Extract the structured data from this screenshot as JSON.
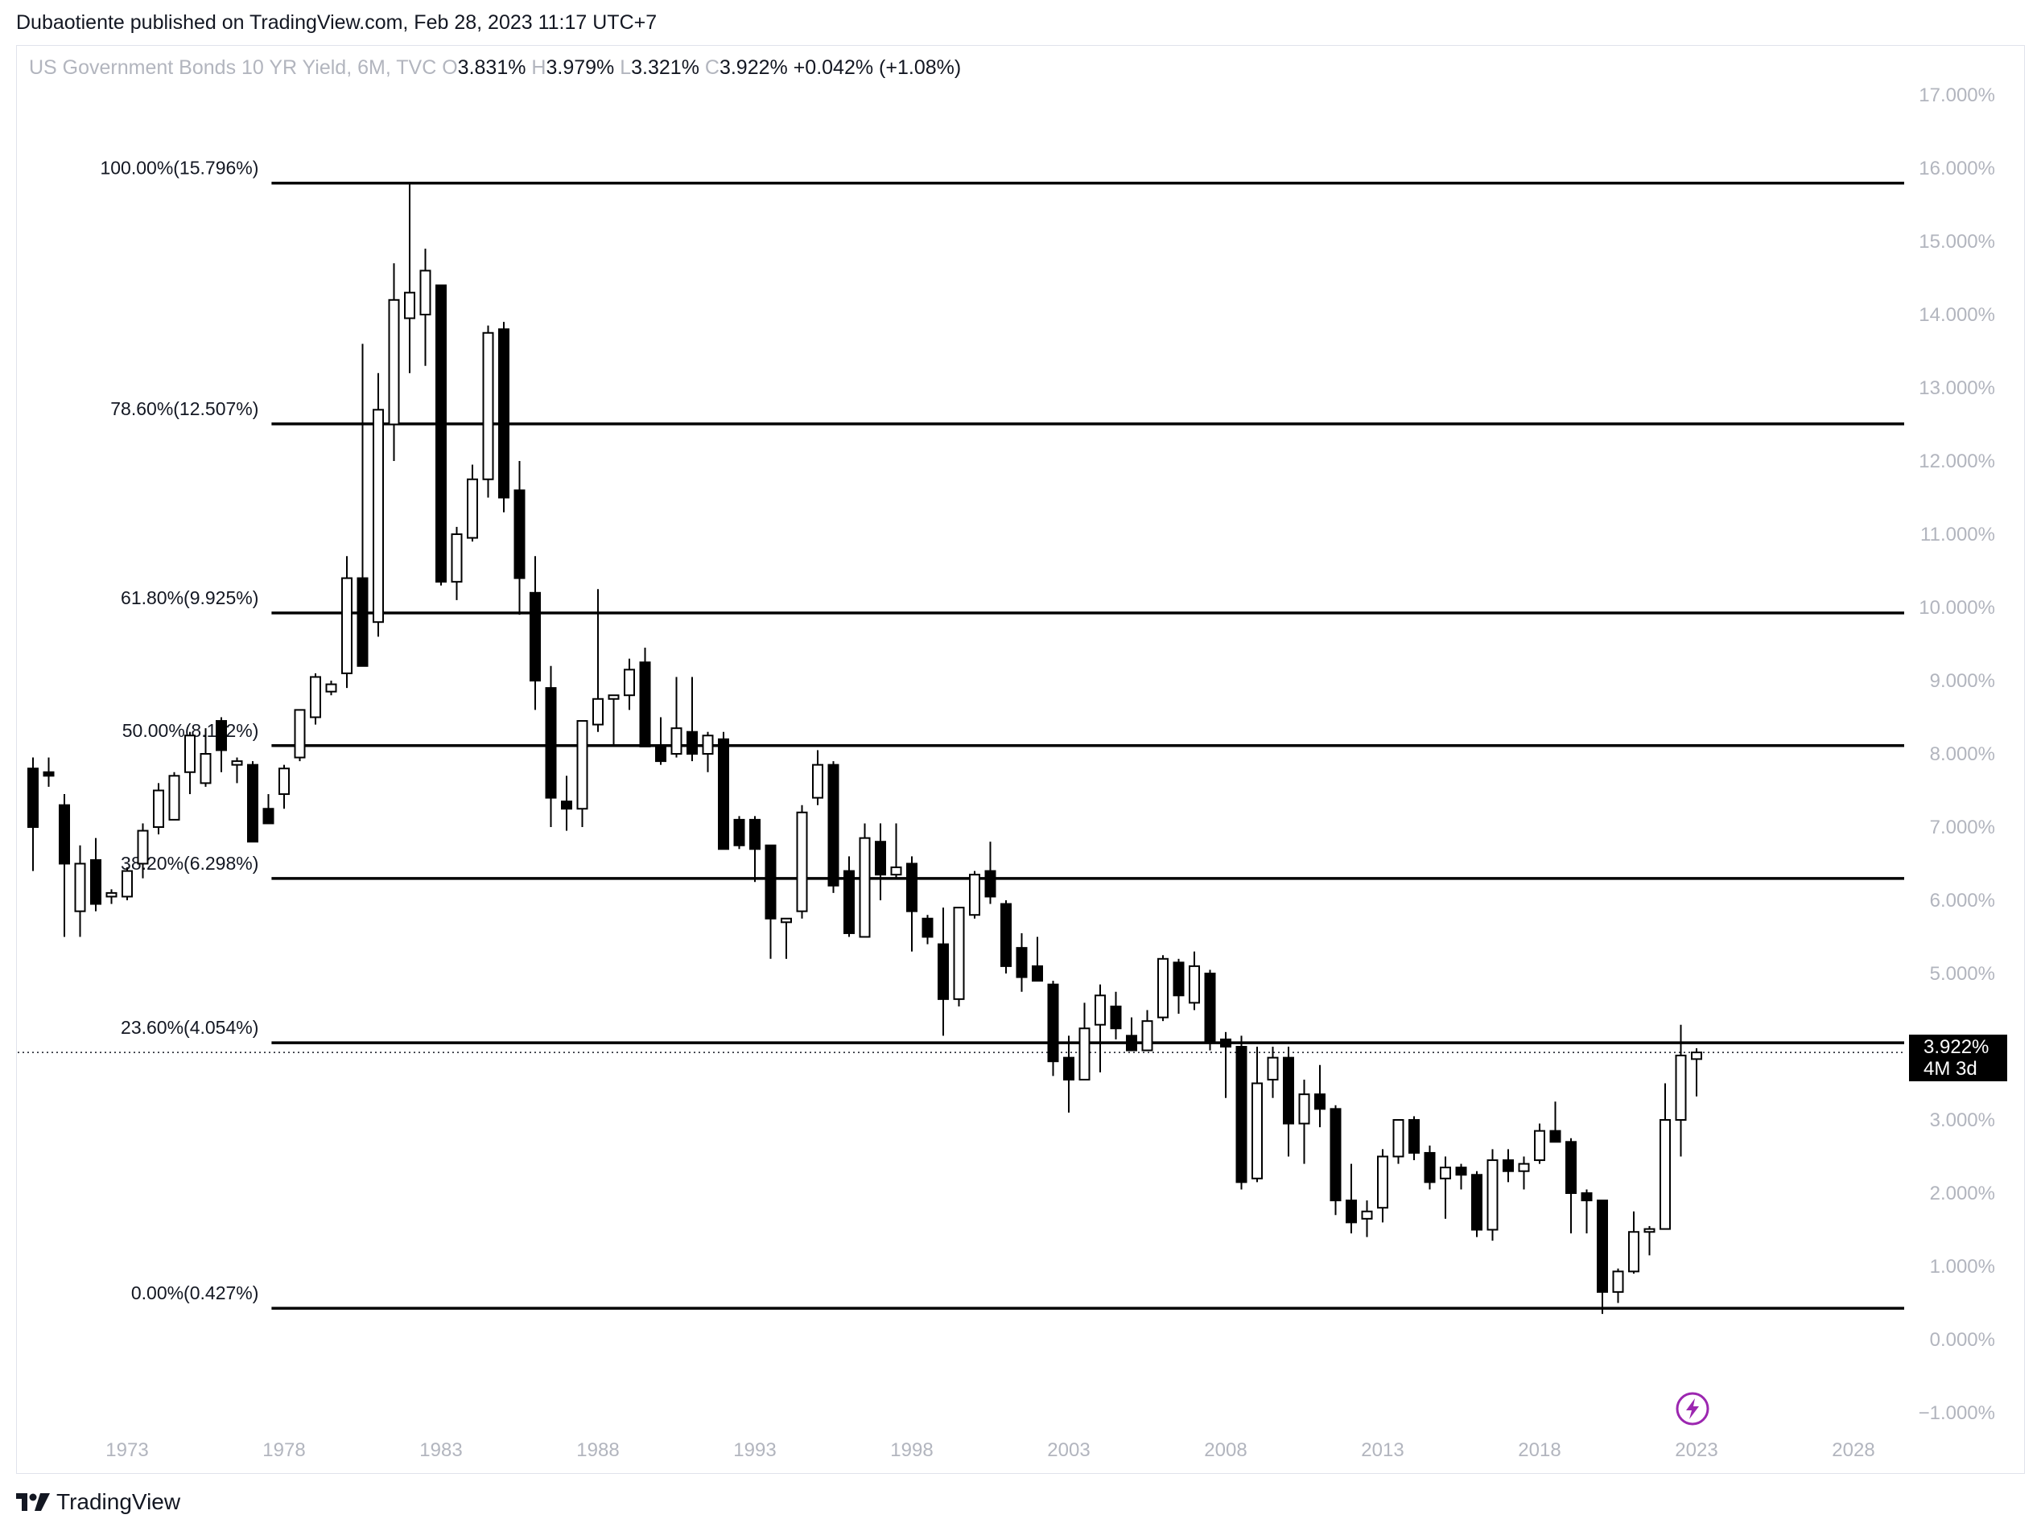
{
  "header": {
    "published_by": "Dubaotiente published on TradingView.com, Feb 28, 2023 11:17 UTC+7"
  },
  "legend": {
    "symbol": "US Government Bonds 10 YR Yield, 6M, TVC",
    "open_label": "O",
    "open": "3.831%",
    "high_label": "H",
    "high": "3.979%",
    "low_label": "L",
    "low": "3.321%",
    "close_label": "C",
    "close": "3.922%",
    "change": "+0.042% (+1.08%)"
  },
  "price_tag": {
    "value": "3.922%",
    "countdown": "4M 3d"
  },
  "branding": {
    "name": "TradingView"
  },
  "icons": {
    "logo": "tradingview-logo-icon",
    "flash": "lightning-icon"
  },
  "colors": {
    "up_body": "#ffffff",
    "down_body": "#000000",
    "wick": "#000000",
    "axis_text": "#b2b5be",
    "fib_line": "#000000",
    "flash": "#9c27b0"
  },
  "chart_data": {
    "type": "candlestick",
    "interval": "6M",
    "y_unit": "%",
    "ylim": [
      -1.2,
      17.8
    ],
    "xlim": [
      1969.9,
      2030.0
    ],
    "y_ticks": [
      "17.000%",
      "16.000%",
      "15.000%",
      "14.000%",
      "13.000%",
      "12.000%",
      "11.000%",
      "10.000%",
      "9.000%",
      "8.000%",
      "7.000%",
      "6.000%",
      "5.000%",
      "4.000%",
      "3.000%",
      "2.000%",
      "1.000%",
      "0.000%",
      "−1.000%"
    ],
    "y_tick_values": [
      17,
      16,
      15,
      14,
      13,
      12,
      11,
      10,
      9,
      8,
      7,
      6,
      5,
      4,
      3,
      2,
      1,
      0,
      -1
    ],
    "x_ticks": [
      "1973",
      "1978",
      "1983",
      "1988",
      "1993",
      "1998",
      "2003",
      "2008",
      "2013",
      "2018",
      "2023",
      "2028"
    ],
    "x_tick_values": [
      1973,
      1978,
      1983,
      1988,
      1993,
      1998,
      2003,
      2008,
      2013,
      2018,
      2023,
      2028
    ],
    "fib_levels": [
      {
        "label": "100.00%(15.796%)",
        "value": 15.796
      },
      {
        "label": "78.60%(12.507%)",
        "value": 12.507
      },
      {
        "label": "61.80%(9.925%)",
        "value": 9.925
      },
      {
        "label": "50.00%(8.112%)",
        "value": 8.112
      },
      {
        "label": "38.20%(6.298%)",
        "value": 6.298
      },
      {
        "label": "23.60%(4.054%)",
        "value": 4.054
      },
      {
        "label": "0.00%(0.427%)",
        "value": 0.427
      }
    ],
    "fib_start_x": 1977.6,
    "current_price": 3.922,
    "candles": [
      {
        "t": 1970.0,
        "o": 7.8,
        "h": 7.95,
        "l": 6.4,
        "c": 7.0
      },
      {
        "t": 1970.5,
        "o": 7.75,
        "h": 7.95,
        "l": 7.55,
        "c": 7.7
      },
      {
        "t": 1971.0,
        "o": 7.3,
        "h": 7.45,
        "l": 5.5,
        "c": 6.5
      },
      {
        "t": 1971.5,
        "o": 5.85,
        "h": 6.75,
        "l": 5.5,
        "c": 6.5
      },
      {
        "t": 1972.0,
        "o": 6.55,
        "h": 6.85,
        "l": 5.85,
        "c": 5.95
      },
      {
        "t": 1972.5,
        "o": 6.05,
        "h": 6.15,
        "l": 5.95,
        "c": 6.1
      },
      {
        "t": 1973.0,
        "o": 6.05,
        "h": 6.45,
        "l": 6.0,
        "c": 6.4
      },
      {
        "t": 1973.5,
        "o": 6.5,
        "h": 7.05,
        "l": 6.3,
        "c": 6.95
      },
      {
        "t": 1974.0,
        "o": 7.0,
        "h": 7.6,
        "l": 6.9,
        "c": 7.5
      },
      {
        "t": 1974.5,
        "o": 7.1,
        "h": 7.75,
        "l": 7.1,
        "c": 7.7
      },
      {
        "t": 1975.0,
        "o": 7.75,
        "h": 8.3,
        "l": 7.45,
        "c": 8.25
      },
      {
        "t": 1975.5,
        "o": 7.6,
        "h": 8.35,
        "l": 7.55,
        "c": 8.0
      },
      {
        "t": 1976.0,
        "o": 8.45,
        "h": 8.5,
        "l": 7.75,
        "c": 8.05
      },
      {
        "t": 1976.5,
        "o": 7.85,
        "h": 7.95,
        "l": 7.6,
        "c": 7.9
      },
      {
        "t": 1977.0,
        "o": 7.85,
        "h": 7.9,
        "l": 6.85,
        "c": 6.8
      },
      {
        "t": 1977.5,
        "o": 7.25,
        "h": 7.45,
        "l": 7.05,
        "c": 7.05
      },
      {
        "t": 1978.0,
        "o": 7.45,
        "h": 7.85,
        "l": 7.25,
        "c": 7.8
      },
      {
        "t": 1978.5,
        "o": 7.95,
        "h": 8.6,
        "l": 7.9,
        "c": 8.6
      },
      {
        "t": 1979.0,
        "o": 8.5,
        "h": 9.1,
        "l": 8.4,
        "c": 9.05
      },
      {
        "t": 1979.5,
        "o": 8.85,
        "h": 9.0,
        "l": 8.8,
        "c": 8.95
      },
      {
        "t": 1980.0,
        "o": 9.1,
        "h": 10.7,
        "l": 8.9,
        "c": 10.4
      },
      {
        "t": 1980.5,
        "o": 10.4,
        "h": 13.6,
        "l": 9.25,
        "c": 9.2
      },
      {
        "t": 1981.0,
        "o": 9.8,
        "h": 13.2,
        "l": 9.6,
        "c": 12.7
      },
      {
        "t": 1981.5,
        "o": 12.5,
        "h": 14.7,
        "l": 12.0,
        "c": 14.2
      },
      {
        "t": 1982.0,
        "o": 13.95,
        "h": 15.8,
        "l": 13.2,
        "c": 14.3
      },
      {
        "t": 1982.5,
        "o": 14.0,
        "h": 14.9,
        "l": 13.3,
        "c": 14.6
      },
      {
        "t": 1983.0,
        "o": 14.4,
        "h": 14.4,
        "l": 10.3,
        "c": 10.35
      },
      {
        "t": 1983.5,
        "o": 10.35,
        "h": 11.1,
        "l": 10.1,
        "c": 11.0
      },
      {
        "t": 1984.0,
        "o": 10.95,
        "h": 11.95,
        "l": 10.9,
        "c": 11.75
      },
      {
        "t": 1984.5,
        "o": 11.75,
        "h": 13.85,
        "l": 11.5,
        "c": 13.75
      },
      {
        "t": 1985.0,
        "o": 13.8,
        "h": 13.9,
        "l": 11.3,
        "c": 11.5
      },
      {
        "t": 1985.5,
        "o": 11.6,
        "h": 12.0,
        "l": 9.9,
        "c": 10.4
      },
      {
        "t": 1986.0,
        "o": 10.2,
        "h": 10.7,
        "l": 8.6,
        "c": 9.0
      },
      {
        "t": 1986.5,
        "o": 8.9,
        "h": 9.2,
        "l": 7.0,
        "c": 7.4
      },
      {
        "t": 1987.0,
        "o": 7.35,
        "h": 7.7,
        "l": 6.95,
        "c": 7.25
      },
      {
        "t": 1987.5,
        "o": 7.25,
        "h": 8.4,
        "l": 7.0,
        "c": 8.45
      },
      {
        "t": 1988.0,
        "o": 8.4,
        "h": 10.25,
        "l": 8.3,
        "c": 8.75
      },
      {
        "t": 1988.5,
        "o": 8.75,
        "h": 8.8,
        "l": 8.1,
        "c": 8.8
      },
      {
        "t": 1989.0,
        "o": 8.8,
        "h": 9.3,
        "l": 8.6,
        "c": 9.15
      },
      {
        "t": 1989.5,
        "o": 9.25,
        "h": 9.45,
        "l": 8.1,
        "c": 8.1
      },
      {
        "t": 1990.0,
        "o": 8.1,
        "h": 8.5,
        "l": 7.85,
        "c": 7.9
      },
      {
        "t": 1990.5,
        "o": 8.0,
        "h": 9.05,
        "l": 7.95,
        "c": 8.35
      },
      {
        "t": 1991.0,
        "o": 8.3,
        "h": 9.05,
        "l": 7.9,
        "c": 8.0
      },
      {
        "t": 1991.5,
        "o": 8.0,
        "h": 8.3,
        "l": 7.75,
        "c": 8.25
      },
      {
        "t": 1992.0,
        "o": 8.2,
        "h": 8.3,
        "l": 6.7,
        "c": 6.7
      },
      {
        "t": 1992.5,
        "o": 7.1,
        "h": 7.15,
        "l": 6.7,
        "c": 6.75
      },
      {
        "t": 1993.0,
        "o": 7.1,
        "h": 7.15,
        "l": 6.25,
        "c": 6.7
      },
      {
        "t": 1993.5,
        "o": 6.75,
        "h": 6.75,
        "l": 5.2,
        "c": 5.75
      },
      {
        "t": 1994.0,
        "o": 5.7,
        "h": 5.75,
        "l": 5.2,
        "c": 5.75
      },
      {
        "t": 1994.5,
        "o": 5.85,
        "h": 7.3,
        "l": 5.75,
        "c": 7.2
      },
      {
        "t": 1995.0,
        "o": 7.4,
        "h": 8.05,
        "l": 7.3,
        "c": 7.85
      },
      {
        "t": 1995.5,
        "o": 7.85,
        "h": 7.9,
        "l": 6.1,
        "c": 6.2
      },
      {
        "t": 1996.0,
        "o": 6.4,
        "h": 6.6,
        "l": 5.5,
        "c": 5.55
      },
      {
        "t": 1996.5,
        "o": 5.5,
        "h": 7.05,
        "l": 5.5,
        "c": 6.85
      },
      {
        "t": 1997.0,
        "o": 6.8,
        "h": 7.05,
        "l": 6.0,
        "c": 6.35
      },
      {
        "t": 1997.5,
        "o": 6.35,
        "h": 7.05,
        "l": 6.3,
        "c": 6.45
      },
      {
        "t": 1998.0,
        "o": 6.5,
        "h": 6.6,
        "l": 5.3,
        "c": 5.85
      },
      {
        "t": 1998.5,
        "o": 5.75,
        "h": 5.8,
        "l": 5.4,
        "c": 5.5
      },
      {
        "t": 1999.0,
        "o": 5.4,
        "h": 5.9,
        "l": 4.15,
        "c": 4.65
      },
      {
        "t": 1999.5,
        "o": 4.65,
        "h": 5.9,
        "l": 4.55,
        "c": 5.9
      },
      {
        "t": 2000.0,
        "o": 5.8,
        "h": 6.4,
        "l": 5.75,
        "c": 6.35
      },
      {
        "t": 2000.5,
        "o": 6.4,
        "h": 6.8,
        "l": 5.95,
        "c": 6.05
      },
      {
        "t": 2001.0,
        "o": 5.95,
        "h": 6.0,
        "l": 5.0,
        "c": 5.1
      },
      {
        "t": 2001.5,
        "o": 5.35,
        "h": 5.55,
        "l": 4.75,
        "c": 4.95
      },
      {
        "t": 2002.0,
        "o": 5.1,
        "h": 5.5,
        "l": 4.9,
        "c": 4.9
      },
      {
        "t": 2002.5,
        "o": 4.85,
        "h": 4.9,
        "l": 3.6,
        "c": 3.8
      },
      {
        "t": 2003.0,
        "o": 3.85,
        "h": 4.15,
        "l": 3.1,
        "c": 3.55
      },
      {
        "t": 2003.5,
        "o": 3.55,
        "h": 4.6,
        "l": 3.55,
        "c": 4.25
      },
      {
        "t": 2004.0,
        "o": 4.3,
        "h": 4.85,
        "l": 3.65,
        "c": 4.7
      },
      {
        "t": 2004.5,
        "o": 4.55,
        "h": 4.75,
        "l": 4.1,
        "c": 4.25
      },
      {
        "t": 2005.0,
        "o": 4.15,
        "h": 4.4,
        "l": 3.95,
        "c": 3.95
      },
      {
        "t": 2005.5,
        "o": 3.95,
        "h": 4.5,
        "l": 3.95,
        "c": 4.35
      },
      {
        "t": 2006.0,
        "o": 4.4,
        "h": 5.25,
        "l": 4.35,
        "c": 5.2
      },
      {
        "t": 2006.5,
        "o": 5.15,
        "h": 5.2,
        "l": 4.45,
        "c": 4.7
      },
      {
        "t": 2007.0,
        "o": 4.6,
        "h": 5.3,
        "l": 4.5,
        "c": 5.1
      },
      {
        "t": 2007.5,
        "o": 5.0,
        "h": 5.05,
        "l": 3.95,
        "c": 4.05
      },
      {
        "t": 2008.0,
        "o": 4.1,
        "h": 4.2,
        "l": 3.3,
        "c": 4.0
      },
      {
        "t": 2008.5,
        "o": 4.0,
        "h": 4.15,
        "l": 2.05,
        "c": 2.15
      },
      {
        "t": 2009.0,
        "o": 2.2,
        "h": 4.0,
        "l": 2.15,
        "c": 3.5
      },
      {
        "t": 2009.5,
        "o": 3.55,
        "h": 4.0,
        "l": 3.3,
        "c": 3.85
      },
      {
        "t": 2010.0,
        "o": 3.85,
        "h": 4.0,
        "l": 2.5,
        "c": 2.95
      },
      {
        "t": 2010.5,
        "o": 2.95,
        "h": 3.55,
        "l": 2.4,
        "c": 3.35
      },
      {
        "t": 2011.0,
        "o": 3.35,
        "h": 3.75,
        "l": 2.9,
        "c": 3.15
      },
      {
        "t": 2011.5,
        "o": 3.15,
        "h": 3.2,
        "l": 1.7,
        "c": 1.9
      },
      {
        "t": 2012.0,
        "o": 1.9,
        "h": 2.4,
        "l": 1.45,
        "c": 1.6
      },
      {
        "t": 2012.5,
        "o": 1.65,
        "h": 1.9,
        "l": 1.4,
        "c": 1.75
      },
      {
        "t": 2013.0,
        "o": 1.8,
        "h": 2.6,
        "l": 1.6,
        "c": 2.5
      },
      {
        "t": 2013.5,
        "o": 2.5,
        "h": 3.0,
        "l": 2.4,
        "c": 3.0
      },
      {
        "t": 2014.0,
        "o": 3.0,
        "h": 3.05,
        "l": 2.45,
        "c": 2.55
      },
      {
        "t": 2014.5,
        "o": 2.55,
        "h": 2.65,
        "l": 2.05,
        "c": 2.15
      },
      {
        "t": 2015.0,
        "o": 2.2,
        "h": 2.5,
        "l": 1.65,
        "c": 2.35
      },
      {
        "t": 2015.5,
        "o": 2.35,
        "h": 2.4,
        "l": 2.05,
        "c": 2.25
      },
      {
        "t": 2016.0,
        "o": 2.25,
        "h": 2.3,
        "l": 1.4,
        "c": 1.5
      },
      {
        "t": 2016.5,
        "o": 1.5,
        "h": 2.6,
        "l": 1.35,
        "c": 2.45
      },
      {
        "t": 2017.0,
        "o": 2.45,
        "h": 2.6,
        "l": 2.15,
        "c": 2.3
      },
      {
        "t": 2017.5,
        "o": 2.3,
        "h": 2.5,
        "l": 2.05,
        "c": 2.4
      },
      {
        "t": 2018.0,
        "o": 2.45,
        "h": 2.95,
        "l": 2.4,
        "c": 2.85
      },
      {
        "t": 2018.5,
        "o": 2.85,
        "h": 3.25,
        "l": 2.8,
        "c": 2.7
      },
      {
        "t": 2019.0,
        "o": 2.7,
        "h": 2.75,
        "l": 1.45,
        "c": 2.0
      },
      {
        "t": 2019.5,
        "o": 2.0,
        "h": 2.05,
        "l": 1.45,
        "c": 1.9
      },
      {
        "t": 2020.0,
        "o": 1.9,
        "h": 1.9,
        "l": 0.35,
        "c": 0.65
      },
      {
        "t": 2020.5,
        "o": 0.65,
        "h": 0.97,
        "l": 0.5,
        "c": 0.93
      },
      {
        "t": 2021.0,
        "o": 0.93,
        "h": 1.75,
        "l": 0.9,
        "c": 1.47
      },
      {
        "t": 2021.5,
        "o": 1.47,
        "h": 1.55,
        "l": 1.15,
        "c": 1.51
      },
      {
        "t": 2022.0,
        "o": 1.51,
        "h": 3.5,
        "l": 1.5,
        "c": 3.0
      },
      {
        "t": 2022.5,
        "o": 3.0,
        "h": 4.3,
        "l": 2.5,
        "c": 3.88
      },
      {
        "t": 2023.0,
        "o": 3.831,
        "h": 3.979,
        "l": 3.321,
        "c": 3.922
      }
    ]
  }
}
